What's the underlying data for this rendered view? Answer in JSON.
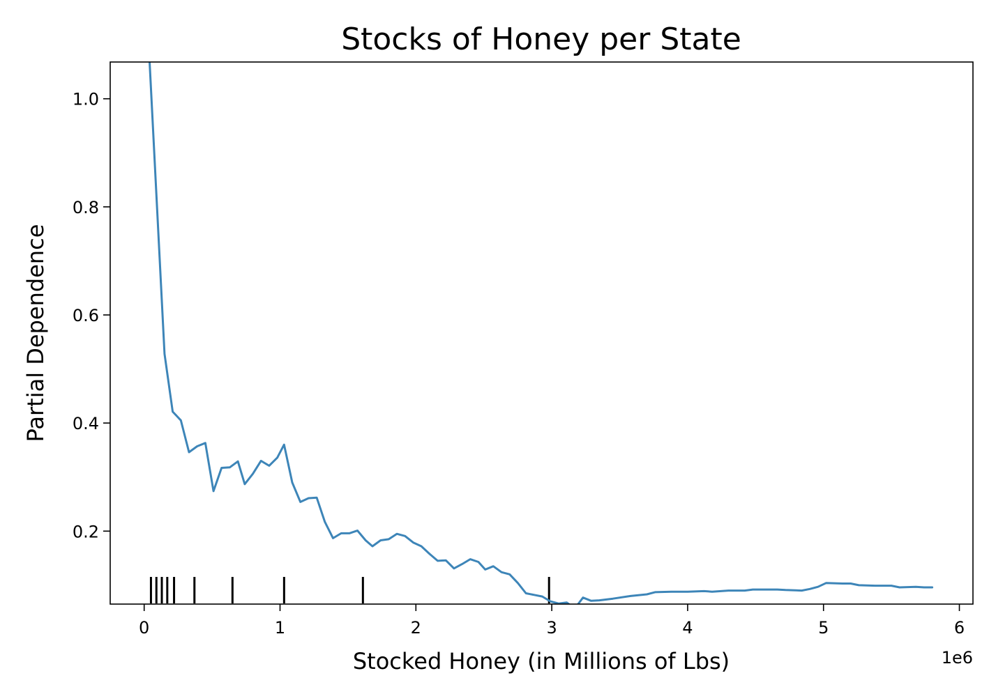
{
  "chart_data": {
    "type": "line",
    "title": "Stocks of Honey per State",
    "xlabel": "Stocked Honey (in Millions of Lbs)",
    "ylabel": "Partial Dependence",
    "x_offset_label": "1e6",
    "xlim": [
      -0.25,
      6.1
    ],
    "ylim": [
      0.065,
      1.068
    ],
    "x_ticks": [
      0,
      1,
      2,
      3,
      4,
      5,
      6
    ],
    "x_tick_labels": [
      "0",
      "1",
      "2",
      "3",
      "4",
      "5",
      "6"
    ],
    "y_ticks": [
      0.2,
      0.4,
      0.6,
      0.8,
      1.0
    ],
    "y_tick_labels": [
      "0.2",
      "0.4",
      "0.6",
      "0.8",
      "1.0"
    ],
    "grid": false,
    "line_color": "#3d85b8",
    "rug_color": "#000000",
    "series": [
      {
        "x": [
          0.04,
          0.15,
          0.21,
          0.27,
          0.33,
          0.39,
          0.45,
          0.51,
          0.57,
          0.63,
          0.69,
          0.74,
          0.8,
          0.86,
          0.92,
          0.98,
          1.03,
          1.09,
          1.15,
          1.21,
          1.27,
          1.33,
          1.39,
          1.45,
          1.51,
          1.57,
          1.63,
          1.68,
          1.74,
          1.8,
          1.86,
          1.92,
          1.98,
          2.04,
          2.1,
          2.16,
          2.22,
          2.28,
          2.34,
          2.4,
          2.46,
          2.51,
          2.57,
          2.63,
          2.69,
          2.75,
          2.81,
          2.87,
          2.93,
          2.99,
          3.05,
          3.11,
          3.17,
          3.23,
          3.29,
          3.35,
          3.45,
          3.58,
          3.7,
          3.76,
          3.88,
          4.0,
          4.12,
          4.18,
          4.3,
          4.42,
          4.48,
          4.6,
          4.66,
          4.72,
          4.84,
          4.9,
          4.96,
          5.02,
          5.14,
          5.2,
          5.26,
          5.38,
          5.44,
          5.5,
          5.56,
          5.68,
          5.74,
          5.8
        ],
        "y": [
          1.068,
          0.528,
          0.421,
          0.405,
          0.346,
          0.357,
          0.363,
          0.274,
          0.317,
          0.318,
          0.329,
          0.287,
          0.306,
          0.33,
          0.321,
          0.336,
          0.36,
          0.29,
          0.254,
          0.261,
          0.262,
          0.217,
          0.187,
          0.196,
          0.196,
          0.201,
          0.183,
          0.172,
          0.183,
          0.185,
          0.195,
          0.191,
          0.179,
          0.172,
          0.158,
          0.145,
          0.146,
          0.131,
          0.139,
          0.148,
          0.143,
          0.129,
          0.135,
          0.124,
          0.12,
          0.104,
          0.085,
          0.082,
          0.079,
          0.07,
          0.066,
          0.068,
          0.057,
          0.077,
          0.071,
          0.072,
          0.075,
          0.08,
          0.083,
          0.087,
          0.088,
          0.088,
          0.089,
          0.088,
          0.09,
          0.09,
          0.092,
          0.092,
          0.092,
          0.091,
          0.09,
          0.093,
          0.097,
          0.104,
          0.103,
          0.103,
          0.1,
          0.099,
          0.099,
          0.099,
          0.096,
          0.097,
          0.096,
          0.096
        ]
      }
    ],
    "rug_x": [
      0.05,
      0.09,
      0.13,
      0.17,
      0.22,
      0.37,
      0.65,
      1.03,
      1.61,
      2.98
    ]
  }
}
